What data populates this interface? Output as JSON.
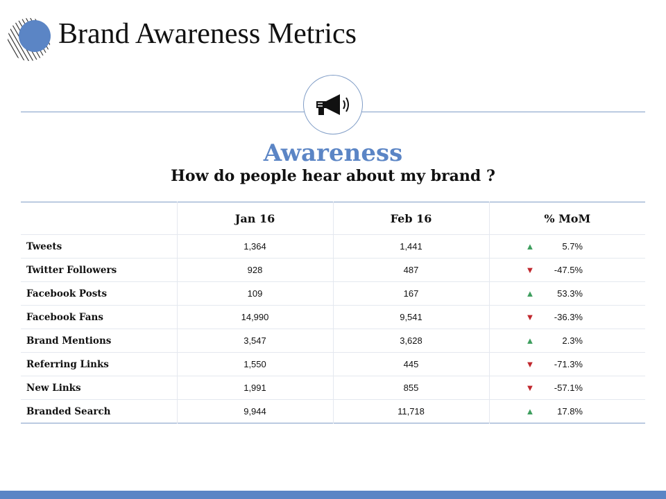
{
  "page": {
    "title": "Brand Awareness Metrics",
    "heading": "Awareness",
    "subheading": "How do people hear about my brand ?"
  },
  "colors": {
    "accent": "#5b85c5",
    "line": "#7f9cc6",
    "up": "#3e9e5e",
    "down": "#c0272d"
  },
  "icons": {
    "logo": "circle-stripes-logo",
    "section": "megaphone-icon",
    "up": "triangle-up-icon",
    "down": "triangle-down-icon"
  },
  "table": {
    "headers": [
      "",
      "Jan 16",
      "Feb 16",
      "% MoM"
    ],
    "rows": [
      {
        "label": "Tweets",
        "jan": "1,364",
        "feb": "1,441",
        "mom": "5.7%",
        "trend": "up"
      },
      {
        "label": "Twitter Followers",
        "jan": "928",
        "feb": "487",
        "mom": "-47.5%",
        "trend": "down"
      },
      {
        "label": "Facebook Posts",
        "jan": "109",
        "feb": "167",
        "mom": "53.3%",
        "trend": "up"
      },
      {
        "label": "Facebook Fans",
        "jan": "14,990",
        "feb": "9,541",
        "mom": "-36.3%",
        "trend": "down"
      },
      {
        "label": "Brand Mentions",
        "jan": "3,547",
        "feb": "3,628",
        "mom": "2.3%",
        "trend": "up"
      },
      {
        "label": "Referring Links",
        "jan": "1,550",
        "feb": "445",
        "mom": "-71.3%",
        "trend": "down"
      },
      {
        "label": "New Links",
        "jan": "1,991",
        "feb": "855",
        "mom": "-57.1%",
        "trend": "down"
      },
      {
        "label": "Branded Search",
        "jan": "9,944",
        "feb": "11,718",
        "mom": "17.8%",
        "trend": "up"
      }
    ]
  }
}
